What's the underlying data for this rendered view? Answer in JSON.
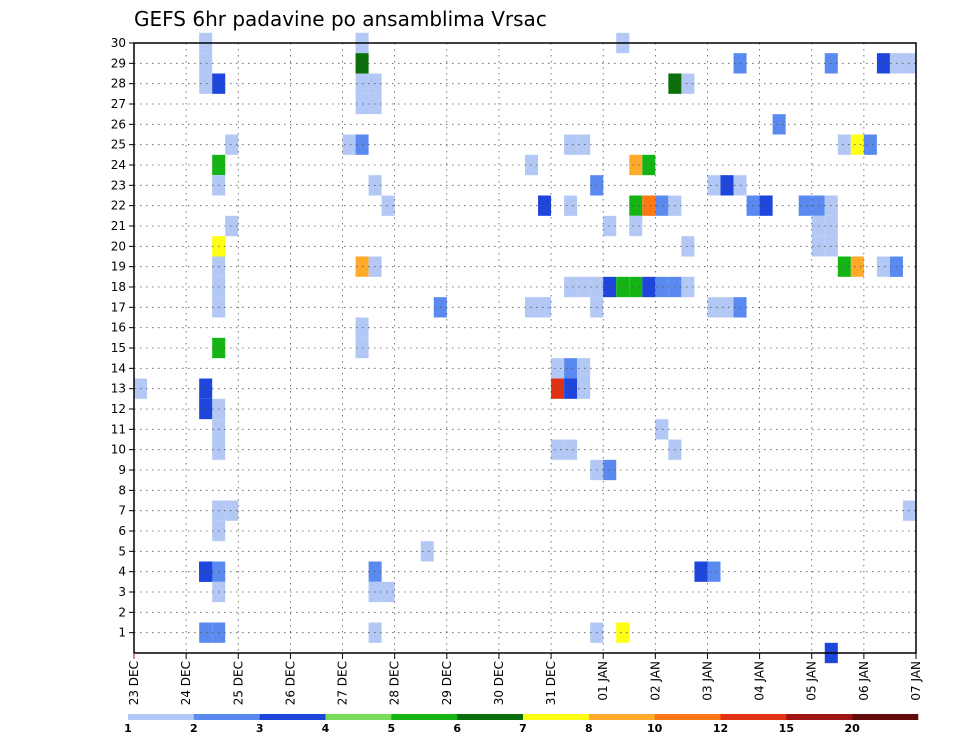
{
  "chart_data": {
    "type": "heatmap",
    "title": "GEFS 6hr padavine po ansamblima Vrsac",
    "xlabel": "",
    "ylabel": "",
    "x_tick_labels": [
      "23 DEC",
      "24 DEC",
      "25 DEC",
      "26 DEC",
      "27 DEC",
      "28 DEC",
      "29 DEC",
      "30 DEC",
      "31 DEC",
      "01 JAN",
      "02 JAN",
      "03 JAN",
      "04 JAN",
      "05 JAN",
      "06 JAN",
      "07 JAN"
    ],
    "y_tick_labels": [
      "1",
      "2",
      "3",
      "4",
      "5",
      "6",
      "7",
      "8",
      "9",
      "10",
      "11",
      "12",
      "13",
      "14",
      "15",
      "16",
      "17",
      "18",
      "19",
      "20",
      "21",
      "22",
      "23",
      "24",
      "25",
      "26",
      "27",
      "28",
      "29",
      "30"
    ],
    "x_range_steps": [
      0,
      60
    ],
    "y_range": [
      0,
      30
    ],
    "grid": true,
    "colorbar": {
      "levels": [
        "1",
        "2",
        "3",
        "4",
        "5",
        "6",
        "7",
        "8",
        "10",
        "12",
        "15",
        "20"
      ],
      "colors": [
        "#b4c8f5",
        "#5a8af0",
        "#1e46dc",
        "#78dc5a",
        "#14b414",
        "#0a6e0a",
        "#ffff14",
        "#ffaa28",
        "#ff7814",
        "#e13214",
        "#a01414",
        "#640a0a"
      ]
    },
    "cells": [
      [
        0,
        13,
        1
      ],
      [
        5,
        30,
        1
      ],
      [
        5,
        29,
        1
      ],
      [
        5,
        28,
        1
      ],
      [
        6,
        28,
        3
      ],
      [
        5,
        13,
        3
      ],
      [
        6,
        12,
        1
      ],
      [
        6,
        11,
        1
      ],
      [
        6,
        10,
        1
      ],
      [
        6,
        4,
        2
      ],
      [
        5,
        4,
        2
      ],
      [
        5,
        4,
        3
      ],
      [
        6,
        3,
        1
      ],
      [
        6,
        1,
        2
      ],
      [
        5,
        1,
        2
      ],
      [
        6,
        24,
        5
      ],
      [
        6,
        23,
        1
      ],
      [
        6,
        20,
        7
      ],
      [
        6,
        19,
        1
      ],
      [
        6,
        18,
        1
      ],
      [
        6,
        17,
        1
      ],
      [
        6,
        15,
        5
      ],
      [
        6,
        7,
        1
      ],
      [
        6,
        6,
        1
      ],
      [
        7,
        25,
        1
      ],
      [
        7,
        21,
        1
      ],
      [
        7,
        7,
        1
      ],
      [
        5,
        12,
        3
      ],
      [
        5,
        4,
        3
      ],
      [
        16,
        25,
        1
      ],
      [
        17,
        30,
        1
      ],
      [
        17,
        29,
        6
      ],
      [
        17,
        28,
        1
      ],
      [
        17,
        27,
        1
      ],
      [
        18,
        28,
        1
      ],
      [
        18,
        27,
        1
      ],
      [
        17,
        25,
        2
      ],
      [
        18,
        23,
        1
      ],
      [
        19,
        22,
        1
      ],
      [
        17,
        19,
        8
      ],
      [
        18,
        19,
        1
      ],
      [
        17,
        16,
        1
      ],
      [
        17,
        15,
        1
      ],
      [
        18,
        4,
        2
      ],
      [
        18,
        3,
        1
      ],
      [
        19,
        3,
        1
      ],
      [
        18,
        1,
        1
      ],
      [
        23,
        17,
        2
      ],
      [
        22,
        5,
        1
      ],
      [
        30,
        24,
        1
      ],
      [
        31,
        22,
        3
      ],
      [
        30,
        17,
        1
      ],
      [
        31,
        17,
        1
      ],
      [
        32,
        14,
        1
      ],
      [
        33,
        14,
        2
      ],
      [
        34,
        14,
        1
      ],
      [
        32,
        13,
        10
      ],
      [
        33,
        13,
        3
      ],
      [
        34,
        13,
        1
      ],
      [
        32,
        10,
        1
      ],
      [
        33,
        10,
        1
      ],
      [
        33,
        25,
        1
      ],
      [
        34,
        25,
        1
      ],
      [
        33,
        22,
        1
      ],
      [
        35,
        23,
        2
      ],
      [
        33,
        18,
        1
      ],
      [
        34,
        18,
        1
      ],
      [
        35,
        18,
        1
      ],
      [
        35,
        17,
        1
      ],
      [
        36,
        21,
        1
      ],
      [
        35,
        9,
        1
      ],
      [
        36,
        9,
        2
      ],
      [
        35,
        1,
        1
      ],
      [
        37,
        1,
        7
      ],
      [
        37,
        30,
        1
      ],
      [
        38,
        24,
        8
      ],
      [
        39,
        24,
        5
      ],
      [
        38,
        22,
        5
      ],
      [
        39,
        22,
        9
      ],
      [
        40,
        22,
        2
      ],
      [
        41,
        22,
        1
      ],
      [
        38,
        21,
        1
      ],
      [
        36,
        18,
        3
      ],
      [
        37,
        18,
        5
      ],
      [
        38,
        18,
        5
      ],
      [
        39,
        18,
        3
      ],
      [
        40,
        18,
        2
      ],
      [
        41,
        18,
        2
      ],
      [
        42,
        18,
        1
      ],
      [
        40,
        11,
        1
      ],
      [
        41,
        10,
        1
      ],
      [
        41,
        28,
        6
      ],
      [
        42,
        28,
        1
      ],
      [
        42,
        20,
        1
      ],
      [
        44,
        23,
        1
      ],
      [
        45,
        23,
        3
      ],
      [
        46,
        23,
        1
      ],
      [
        44,
        17,
        1
      ],
      [
        45,
        17,
        1
      ],
      [
        46,
        17,
        2
      ],
      [
        43,
        4,
        3
      ],
      [
        44,
        4,
        2
      ],
      [
        46,
        29,
        2
      ],
      [
        49,
        26,
        2
      ],
      [
        47,
        22,
        2
      ],
      [
        48,
        22,
        3
      ],
      [
        51,
        22,
        2
      ],
      [
        52,
        22,
        2
      ],
      [
        53,
        22,
        1
      ],
      [
        52,
        21,
        1
      ],
      [
        53,
        21,
        1
      ],
      [
        52,
        20,
        1
      ],
      [
        53,
        20,
        1
      ],
      [
        53,
        29,
        2
      ],
      [
        57,
        29,
        3
      ],
      [
        58,
        29,
        1
      ],
      [
        59,
        29,
        1
      ],
      [
        54,
        25,
        1
      ],
      [
        55,
        25,
        7
      ],
      [
        56,
        25,
        2
      ],
      [
        54,
        19,
        5
      ],
      [
        55,
        19,
        8
      ],
      [
        57,
        19,
        1
      ],
      [
        58,
        19,
        2
      ],
      [
        59,
        7,
        1
      ],
      [
        53,
        0,
        3
      ]
    ]
  }
}
